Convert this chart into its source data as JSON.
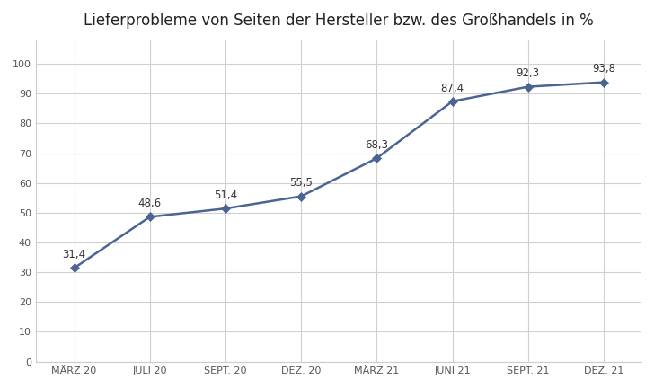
{
  "title": "Lieferprobleme von Seiten der Hersteller bzw. des Großhandels in %",
  "x_labels": [
    "MÄRZ 20",
    "JULI 20",
    "SEPT. 20",
    "DEZ. 20",
    "MÄRZ 21",
    "JUNI 21",
    "SEPT. 21",
    "DEZ. 21"
  ],
  "y_values": [
    31.4,
    48.6,
    51.4,
    55.5,
    68.3,
    87.4,
    92.3,
    93.8
  ],
  "y_labels": [
    "31,4",
    "48,6",
    "51,4",
    "55,5",
    "68,3",
    "87,4",
    "92,3",
    "93,8"
  ],
  "line_color": "#4a6494",
  "marker_color": "#4a6494",
  "background_color": "#ffffff",
  "plot_bg_color": "#ffffff",
  "grid_color": "#d0d0d0",
  "spine_color": "#cccccc",
  "title_fontsize": 12,
  "label_fontsize": 8.5,
  "tick_fontsize": 8,
  "ylim": [
    0,
    108
  ],
  "yticks": [
    0,
    10,
    20,
    30,
    40,
    50,
    60,
    70,
    80,
    90,
    100
  ]
}
